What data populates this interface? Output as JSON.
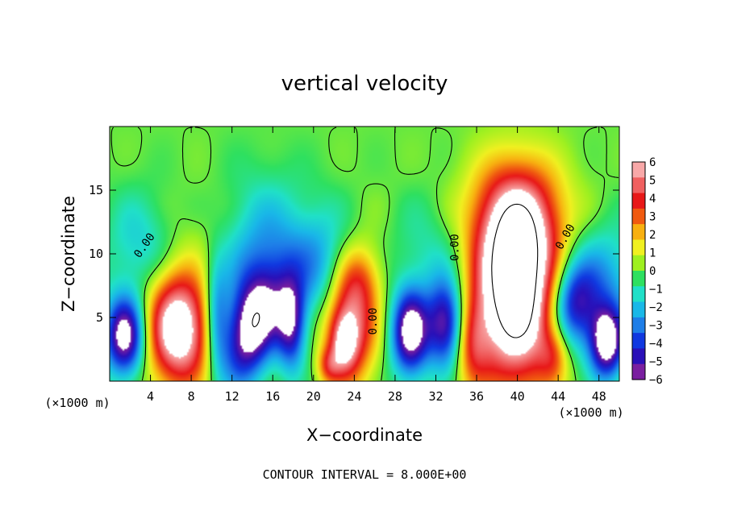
{
  "chart_data": {
    "type": "heatmap",
    "title": "vertical velocity",
    "xlabel": "X−coordinate",
    "ylabel": "Z−coordinate",
    "x_unit_label": "(×1000 m)",
    "x_unit_label_right": "(×1000 m)",
    "xlim": [
      0,
      50
    ],
    "ylim": [
      0,
      20
    ],
    "x_ticks": [
      4,
      8,
      12,
      16,
      20,
      24,
      28,
      32,
      36,
      40,
      44,
      48
    ],
    "y_ticks": [
      5,
      10,
      15
    ],
    "colorbar": {
      "min": -6,
      "max": 6,
      "ticks": [
        6,
        5,
        4,
        3,
        2,
        1,
        0,
        -1,
        -2,
        -3,
        -4,
        -5,
        -6
      ],
      "tick_labels": [
        "6",
        "5",
        "4",
        "3",
        "2",
        "1",
        "0",
        "−1",
        "−2",
        "−3",
        "−4",
        "−5",
        "−6"
      ],
      "colors": [
        "#7a1fa0",
        "#2a10b8",
        "#1038e0",
        "#1e7ee8",
        "#19b8e8",
        "#20e0c8",
        "#2ee060",
        "#9ef020",
        "#f0f020",
        "#f8b010",
        "#f05a10",
        "#e81818",
        "#f06060",
        "#f8a8a8"
      ]
    },
    "saturation_color": "#ffffff",
    "cells": [
      {
        "x": 1.5,
        "z": 3.5,
        "sx": 1.4,
        "sz": 2.2,
        "w": -7
      },
      {
        "x": 6.8,
        "z": 4.2,
        "sx": 2.2,
        "sz": 3.2,
        "w": 8
      },
      {
        "x": 14.0,
        "z": 4.2,
        "sx": 1.8,
        "sz": 3.0,
        "w": -7,
        "tilt": -0.25
      },
      {
        "x": 17.8,
        "z": 4.5,
        "sx": 1.0,
        "sz": 2.5,
        "w": -5
      },
      {
        "x": 14.5,
        "z": 10.0,
        "sx": 4.0,
        "sz": 4.0,
        "w": -2.8
      },
      {
        "x": 10.0,
        "z": 11.5,
        "sx": 2.5,
        "sz": 3.0,
        "w": 1.2
      },
      {
        "x": 23.5,
        "z": 4.0,
        "sx": 1.8,
        "sz": 3.0,
        "w": 5.5
      },
      {
        "x": 23.0,
        "z": 3.0,
        "sx": 0.9,
        "sz": 1.6,
        "w": 3
      },
      {
        "x": 24.5,
        "z": 8.0,
        "sx": 1.5,
        "sz": 2.0,
        "w": 2.5
      },
      {
        "x": 29.5,
        "z": 3.8,
        "sx": 1.3,
        "sz": 2.4,
        "w": -7
      },
      {
        "x": 33.0,
        "z": 4.5,
        "sx": 1.3,
        "sz": 2.4,
        "w": -6
      },
      {
        "x": 39.8,
        "z": 7.0,
        "sx": 2.8,
        "sz": 5.0,
        "w": 10
      },
      {
        "x": 40.0,
        "z": 13.0,
        "sx": 3.2,
        "sz": 3.0,
        "w": 4
      },
      {
        "x": 45.5,
        "z": 6.0,
        "sx": 1.6,
        "sz": 2.4,
        "w": -5
      },
      {
        "x": 48.8,
        "z": 3.0,
        "sx": 1.2,
        "sz": 2.0,
        "w": -7
      },
      {
        "x": 48.5,
        "z": 8.0,
        "sx": 2.5,
        "sz": 3.0,
        "w": -2.5
      },
      {
        "x": 10.5,
        "z": 5.0,
        "sx": 0.8,
        "sz": 3.0,
        "w": -3
      },
      {
        "x": 20.5,
        "z": 9.0,
        "sx": 2.0,
        "sz": 3.0,
        "w": -2
      },
      {
        "x": 31.5,
        "z": 10.0,
        "sx": 2.5,
        "sz": 3.0,
        "w": -1.2
      },
      {
        "x": 3.0,
        "z": 10.5,
        "sx": 2.5,
        "sz": 3.0,
        "w": -1.8
      },
      {
        "x": 21.5,
        "z": 1.2,
        "sx": 0.8,
        "sz": 1.0,
        "w": 2.5
      },
      {
        "x": 35.5,
        "z": 3.0,
        "sx": 1.2,
        "sz": 2.5,
        "w": 3
      },
      {
        "x": 43.5,
        "z": 2.0,
        "sx": 1.0,
        "sz": 1.5,
        "w": 2
      }
    ],
    "contour_labels": [
      {
        "text": "0.00",
        "x": 3.7,
        "z": 10.5,
        "angle": -55
      },
      {
        "text": "0.00",
        "x": 26.2,
        "z": 4.7,
        "angle": -90
      },
      {
        "text": "0.00",
        "x": 34.2,
        "z": 10.5,
        "angle": -90
      },
      {
        "text": "0.00",
        "x": 45.0,
        "z": 11.2,
        "angle": -60
      }
    ],
    "footer": "CONTOUR INTERVAL = 8.000E+00"
  }
}
